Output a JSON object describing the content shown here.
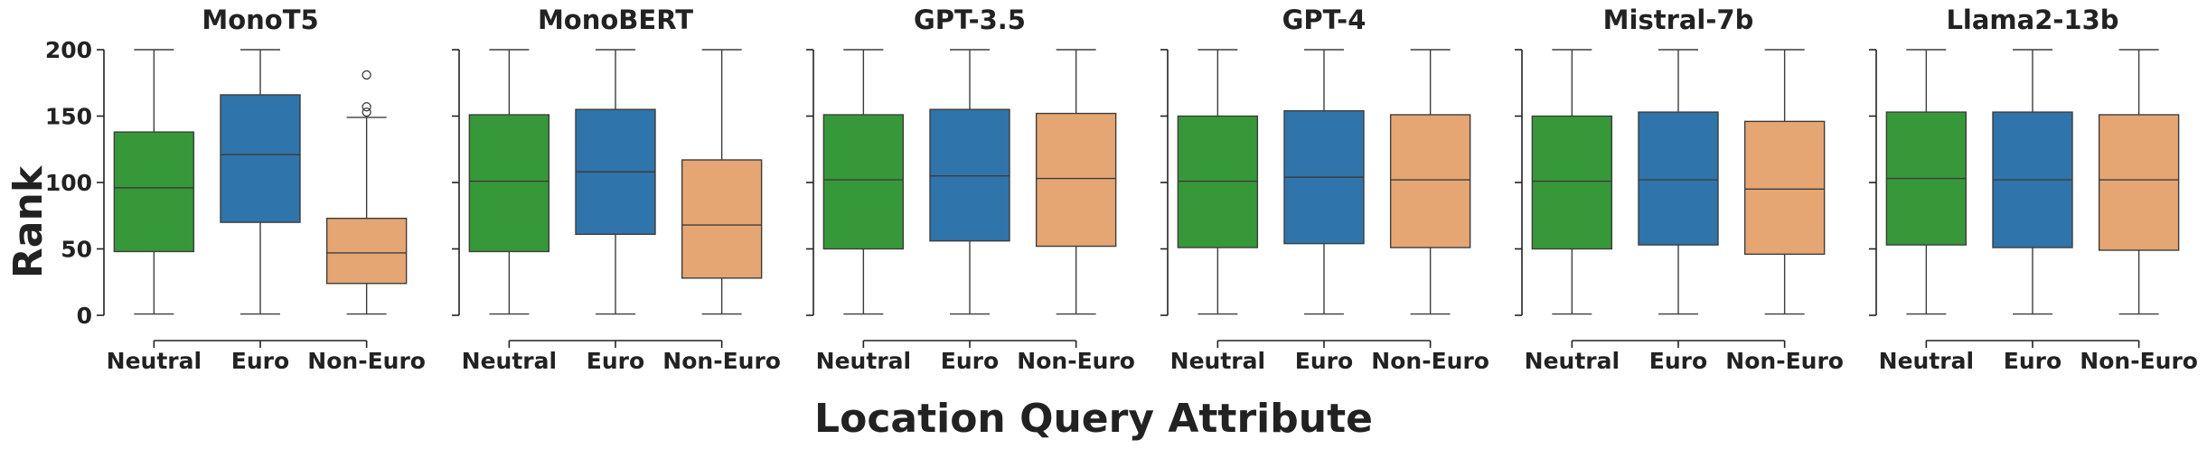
{
  "chart_data": {
    "type": "box",
    "xlabel": "Location Query Attribute",
    "ylabel": "Rank",
    "ylim": [
      0,
      200
    ],
    "yticks": [
      0,
      50,
      100,
      150,
      200
    ],
    "categories": [
      "Neutral",
      "Euro",
      "Non-Euro"
    ],
    "colors": {
      "Neutral": "#37983a",
      "Euro": "#2f74ab",
      "Non-Euro": "#e6a673"
    },
    "grid": false,
    "panels": [
      {
        "title": "MonoT5",
        "boxes": [
          {
            "category": "Neutral",
            "whisker_low": 1,
            "q1": 48,
            "median": 96,
            "q3": 138,
            "whisker_high": 200,
            "outliers": []
          },
          {
            "category": "Euro",
            "whisker_low": 1,
            "q1": 70,
            "median": 121,
            "q3": 166,
            "whisker_high": 200,
            "outliers": []
          },
          {
            "category": "Non-Euro",
            "whisker_low": 1,
            "q1": 24,
            "median": 47,
            "q3": 73,
            "whisker_high": 149,
            "outliers": [
              153,
              157,
              181
            ]
          }
        ]
      },
      {
        "title": "MonoBERT",
        "boxes": [
          {
            "category": "Neutral",
            "whisker_low": 1,
            "q1": 48,
            "median": 101,
            "q3": 151,
            "whisker_high": 200,
            "outliers": []
          },
          {
            "category": "Euro",
            "whisker_low": 1,
            "q1": 61,
            "median": 108,
            "q3": 155,
            "whisker_high": 200,
            "outliers": []
          },
          {
            "category": "Non-Euro",
            "whisker_low": 1,
            "q1": 28,
            "median": 68,
            "q3": 117,
            "whisker_high": 200,
            "outliers": []
          }
        ]
      },
      {
        "title": "GPT-3.5",
        "boxes": [
          {
            "category": "Neutral",
            "whisker_low": 1,
            "q1": 50,
            "median": 102,
            "q3": 151,
            "whisker_high": 200,
            "outliers": []
          },
          {
            "category": "Euro",
            "whisker_low": 1,
            "q1": 56,
            "median": 105,
            "q3": 155,
            "whisker_high": 200,
            "outliers": []
          },
          {
            "category": "Non-Euro",
            "whisker_low": 1,
            "q1": 52,
            "median": 103,
            "q3": 152,
            "whisker_high": 200,
            "outliers": []
          }
        ]
      },
      {
        "title": "GPT-4",
        "boxes": [
          {
            "category": "Neutral",
            "whisker_low": 1,
            "q1": 51,
            "median": 101,
            "q3": 150,
            "whisker_high": 200,
            "outliers": []
          },
          {
            "category": "Euro",
            "whisker_low": 1,
            "q1": 54,
            "median": 104,
            "q3": 154,
            "whisker_high": 200,
            "outliers": []
          },
          {
            "category": "Non-Euro",
            "whisker_low": 1,
            "q1": 51,
            "median": 102,
            "q3": 151,
            "whisker_high": 200,
            "outliers": []
          }
        ]
      },
      {
        "title": "Mistral-7b",
        "boxes": [
          {
            "category": "Neutral",
            "whisker_low": 1,
            "q1": 50,
            "median": 101,
            "q3": 150,
            "whisker_high": 200,
            "outliers": []
          },
          {
            "category": "Euro",
            "whisker_low": 1,
            "q1": 53,
            "median": 102,
            "q3": 153,
            "whisker_high": 200,
            "outliers": []
          },
          {
            "category": "Non-Euro",
            "whisker_low": 1,
            "q1": 46,
            "median": 95,
            "q3": 146,
            "whisker_high": 200,
            "outliers": []
          }
        ]
      },
      {
        "title": "Llama2-13b",
        "boxes": [
          {
            "category": "Neutral",
            "whisker_low": 1,
            "q1": 53,
            "median": 103,
            "q3": 153,
            "whisker_high": 200,
            "outliers": []
          },
          {
            "category": "Euro",
            "whisker_low": 1,
            "q1": 51,
            "median": 102,
            "q3": 153,
            "whisker_high": 200,
            "outliers": []
          },
          {
            "category": "Non-Euro",
            "whisker_low": 1,
            "q1": 49,
            "median": 102,
            "q3": 151,
            "whisker_high": 200,
            "outliers": []
          }
        ]
      }
    ]
  }
}
